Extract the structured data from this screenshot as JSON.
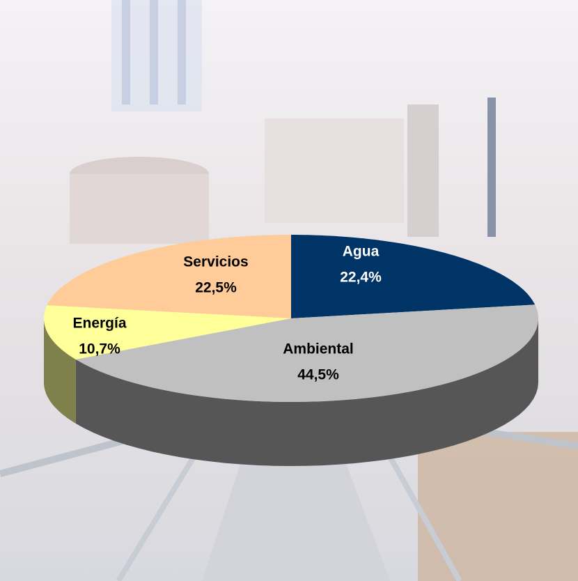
{
  "chart_data": {
    "type": "pie",
    "categories": [
      "Agua",
      "Ambiental",
      "Energía",
      "Servicios"
    ],
    "values": [
      22.4,
      44.5,
      10.7,
      22.5
    ],
    "value_labels": [
      "22,4%",
      "44,5%",
      "10,7%",
      "22,5%"
    ],
    "colors": [
      "#003366",
      "#c0c0c0",
      "#ffff99",
      "#ffcc99"
    ]
  }
}
